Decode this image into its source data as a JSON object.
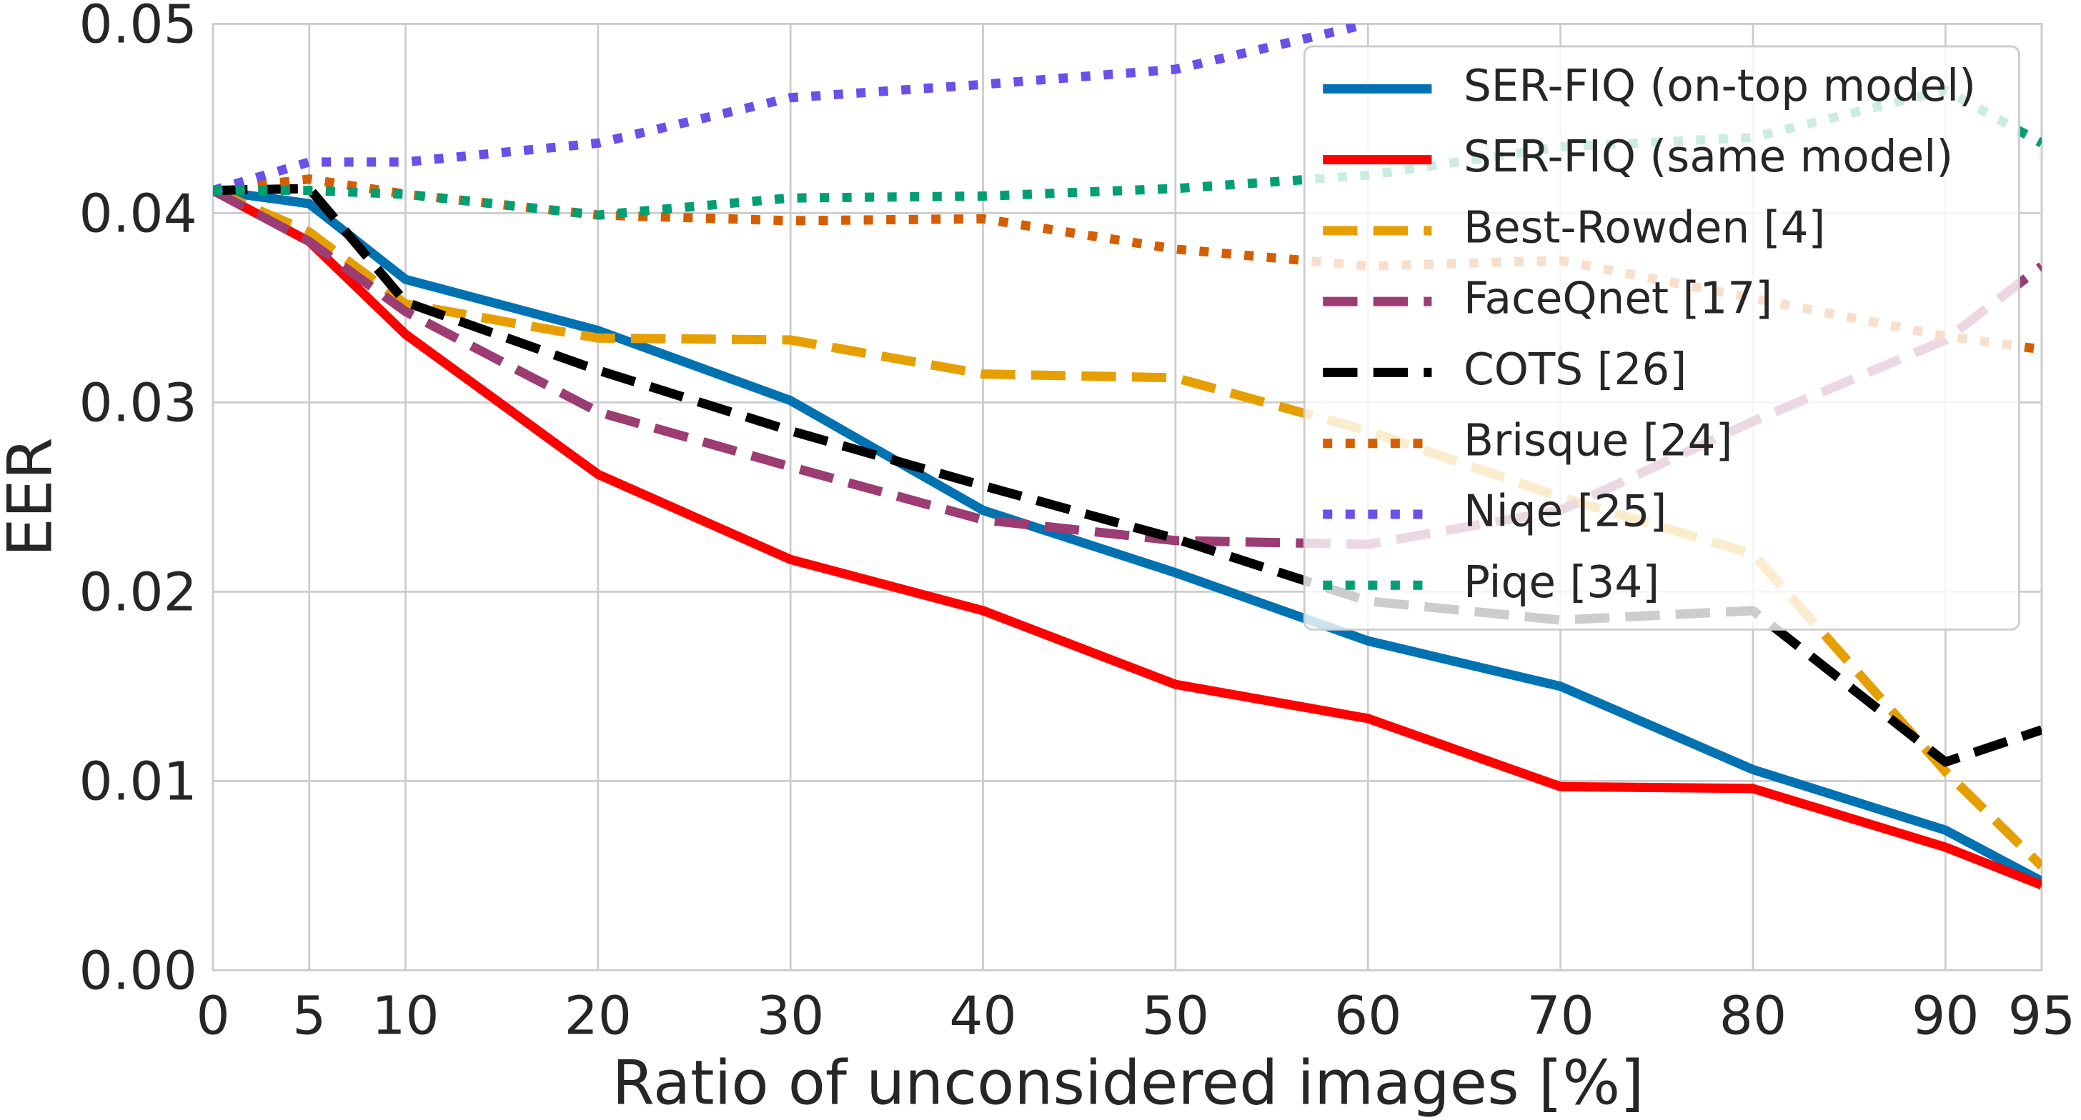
{
  "chart_data": {
    "type": "line",
    "x_label": "Ratio of unconsidered images [%]",
    "y_label": "EER",
    "x": [
      0,
      5,
      10,
      20,
      30,
      40,
      50,
      60,
      70,
      80,
      90,
      95
    ],
    "xlim": [
      0,
      95
    ],
    "xticks": [
      0,
      5,
      10,
      20,
      30,
      40,
      50,
      60,
      70,
      80,
      90,
      95
    ],
    "ylim": [
      0,
      0.05
    ],
    "yticks": [
      {
        "value": 0,
        "label": "0.00"
      },
      0.01,
      0.02,
      0.03,
      0.04,
      0.05
    ],
    "grid": true,
    "legend": "upper right",
    "series": [
      {
        "name": "SER-FIQ (on-top model)",
        "color": "#0072b2",
        "linestyle": "solid",
        "values": [
          0.0412,
          0.0405,
          0.0365,
          0.0338,
          0.0301,
          0.0243,
          0.021,
          0.0174,
          0.015,
          0.0106,
          0.0074,
          0.0047
        ]
      },
      {
        "name": "SER-FIQ (same model)",
        "color": "#ff0000",
        "linestyle": "solid",
        "values": [
          0.0412,
          0.0385,
          0.0336,
          0.0262,
          0.0217,
          0.019,
          0.0151,
          0.0133,
          0.0097,
          0.0096,
          0.0065,
          0.0045
        ]
      },
      {
        "name": "Best-Rowden [4]",
        "color": "#e69f00",
        "linestyle": "dashed",
        "values": [
          0.0412,
          0.039,
          0.0352,
          0.0334,
          0.0333,
          0.0315,
          0.0313,
          0.0285,
          0.025,
          0.022,
          0.0105,
          0.0055
        ]
      },
      {
        "name": "FaceQnet [17]",
        "color": "#9b3c73",
        "linestyle": "dashed",
        "values": [
          0.0412,
          0.0385,
          0.0348,
          0.0295,
          0.0266,
          0.0238,
          0.0227,
          0.0225,
          0.0243,
          0.029,
          0.0333,
          0.0372
        ]
      },
      {
        "name": "COTS [26]",
        "color": "#000000",
        "linestyle": "dashed",
        "values": [
          0.0412,
          0.0413,
          0.0353,
          0.0317,
          0.0285,
          0.0256,
          0.0228,
          0.0195,
          0.0185,
          0.019,
          0.011,
          0.0127
        ]
      },
      {
        "name": "Brisque [24]",
        "color": "#d55e00",
        "linestyle": "dotted",
        "values": [
          0.0412,
          0.0418,
          0.041,
          0.0399,
          0.0396,
          0.0397,
          0.0381,
          0.0372,
          0.0375,
          0.0355,
          0.0335,
          0.0328
        ]
      },
      {
        "name": "Niqe [25]",
        "color": "#6a4fe8",
        "linestyle": "dotted",
        "values": [
          0.0412,
          0.0427,
          0.0427,
          0.0437,
          0.0461,
          0.0468,
          0.0476,
          0.05,
          null,
          null,
          null,
          null
        ]
      },
      {
        "name": "Piqe [34]",
        "color": "#009e73",
        "linestyle": "dotted",
        "values": [
          0.0412,
          0.0412,
          0.041,
          0.0399,
          0.0408,
          0.0409,
          0.0413,
          0.042,
          0.0435,
          0.044,
          0.0465,
          0.0437
        ]
      }
    ]
  }
}
